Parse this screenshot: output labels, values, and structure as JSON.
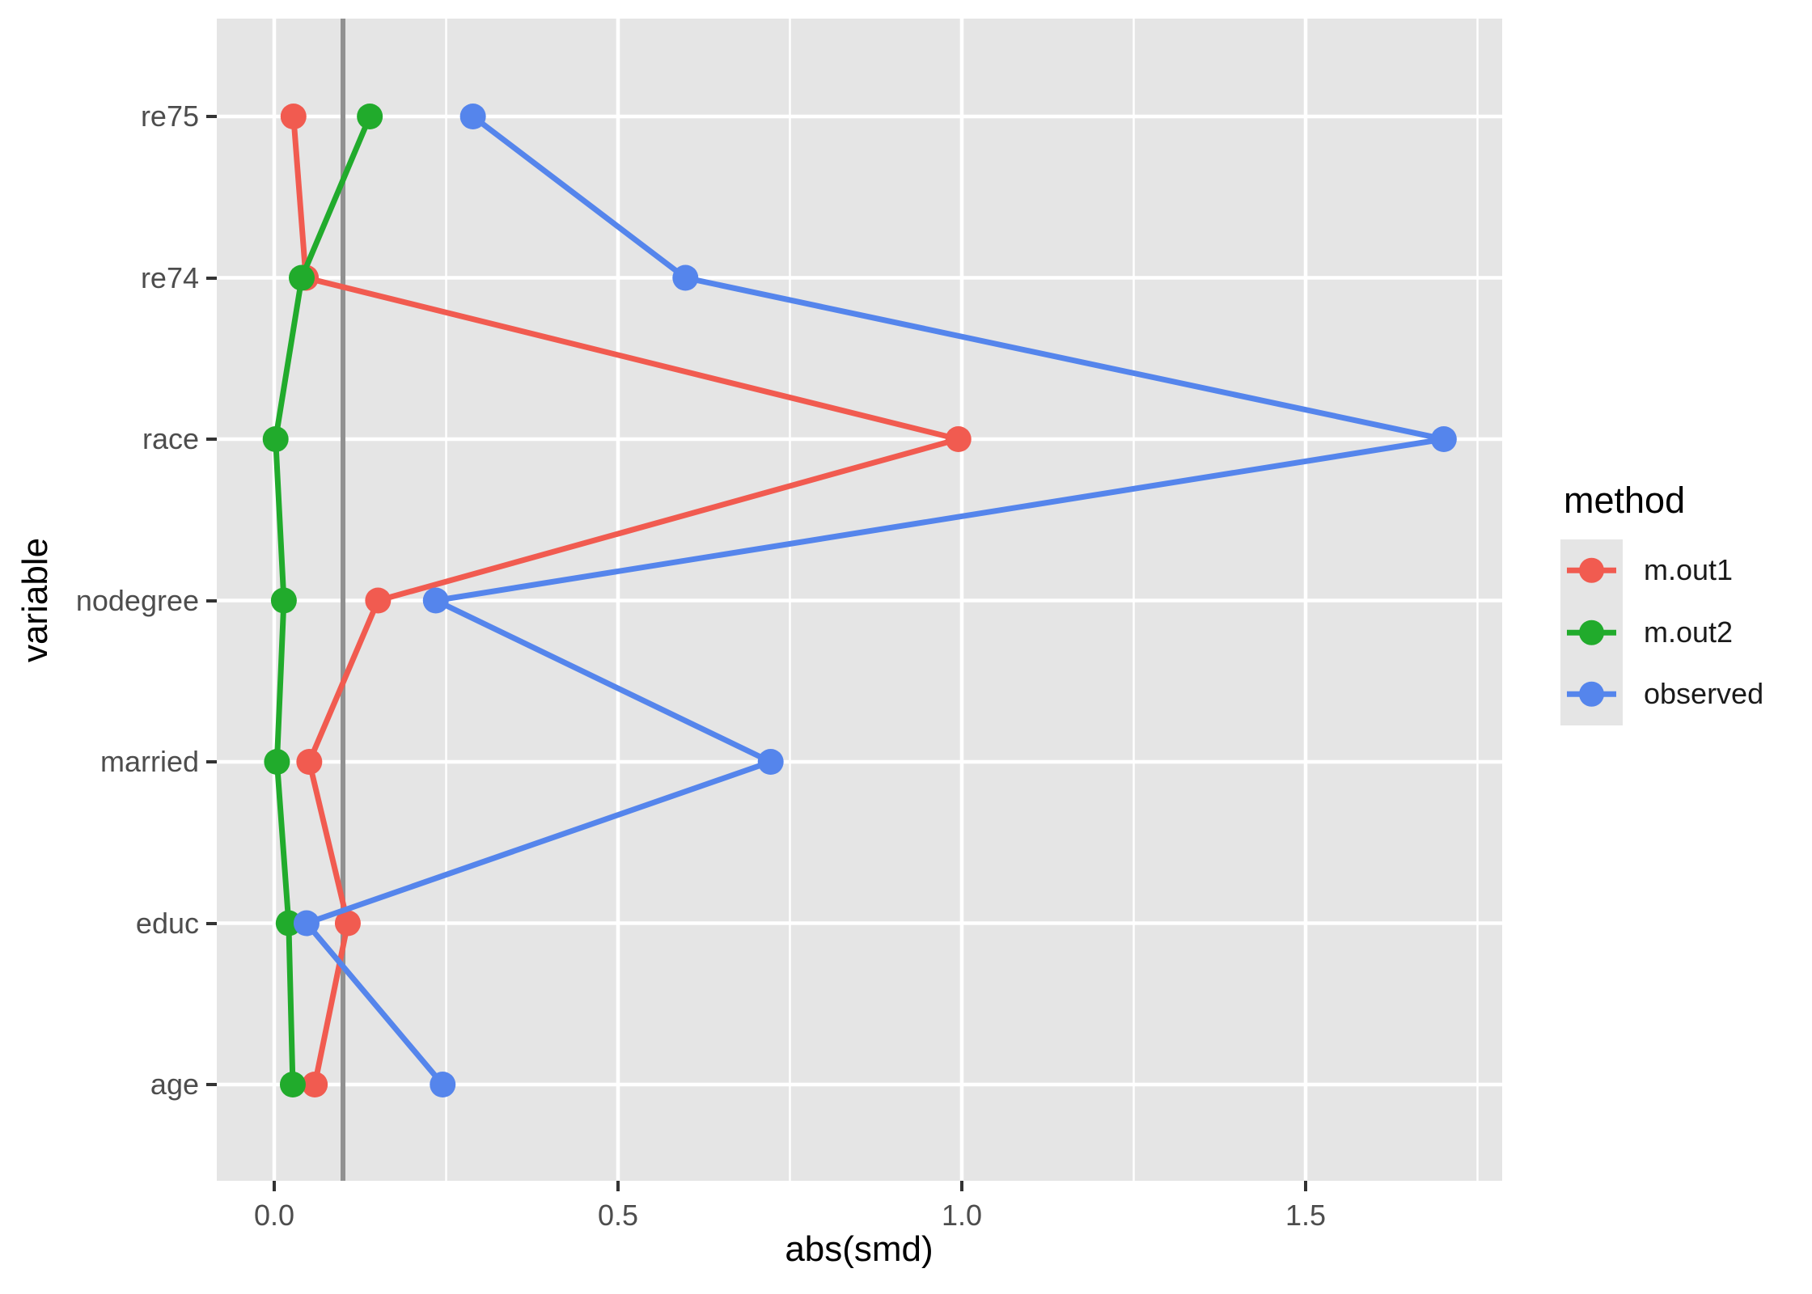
{
  "figure": {
    "background": "#FFFFFF",
    "panel_background": "#E5E5E5",
    "gridline_color": "#FFFFFF",
    "tick_color": "#333333",
    "tick_label_color": "#4D4D4D",
    "title_color": "#000000"
  },
  "chart_data": {
    "type": "line",
    "orientation": "horizontal-categories",
    "title": "",
    "xlabel": "abs(smd)",
    "ylabel": "variable",
    "categories_bottom_to_top": [
      "age",
      "educ",
      "married",
      "nodegree",
      "race",
      "re74",
      "re75"
    ],
    "x_ticks": [
      0.0,
      0.5,
      1.0,
      1.5
    ],
    "x_tick_labels": [
      "0.0",
      "0.5",
      "1.0",
      "1.5"
    ],
    "x_minor_ticks": [
      0.25,
      0.75,
      1.25,
      1.75
    ],
    "xlim": [
      -0.084,
      1.786
    ],
    "grid": true,
    "threshold_x": 0.1,
    "threshold_color": "#919191",
    "legend": {
      "title": "method",
      "position": "right"
    },
    "series": [
      {
        "name": "m.out1",
        "color": "#F15B50",
        "values": {
          "age": 0.059,
          "educ": 0.107,
          "married": 0.051,
          "nodegree": 0.151,
          "race": 0.995,
          "re74": 0.046,
          "re75": 0.028
        }
      },
      {
        "name": "m.out2",
        "color": "#21AB2C",
        "values": {
          "age": 0.027,
          "educ": 0.021,
          "married": 0.004,
          "nodegree": 0.014,
          "race": 0.002,
          "re74": 0.04,
          "re75": 0.139
        }
      },
      {
        "name": "observed",
        "color": "#5585EC",
        "values": {
          "age": 0.245,
          "educ": 0.047,
          "married": 0.722,
          "nodegree": 0.235,
          "race": 1.701,
          "re74": 0.598,
          "re75": 0.289
        }
      }
    ]
  }
}
